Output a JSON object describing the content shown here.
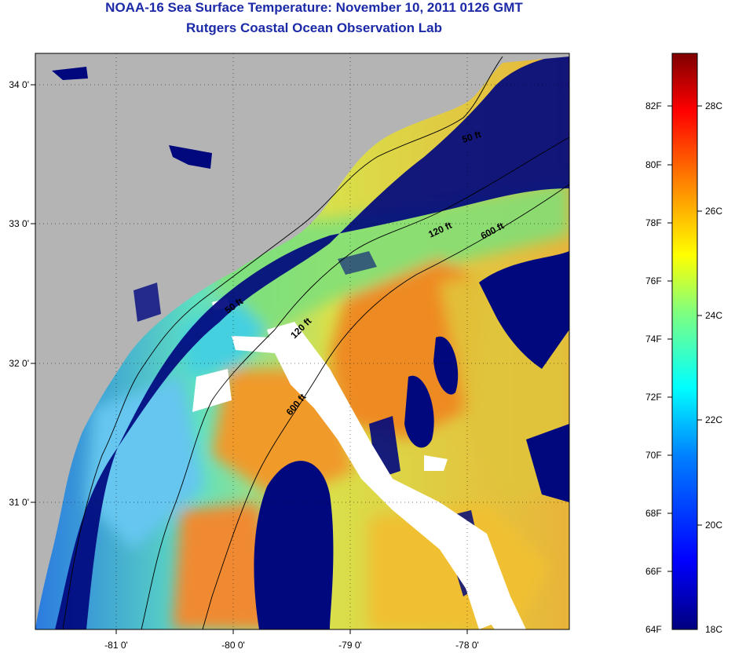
{
  "header": {
    "title": "NOAA-16 Sea Surface Temperature:  November 10, 2011 0126 GMT",
    "subtitle": "Rutgers Coastal Ocean Observation Lab"
  },
  "map": {
    "lat_ticks": [
      "34 0'",
      "33 0'",
      "32 0'",
      "31 0'"
    ],
    "lon_ticks": [
      "-81 0'",
      "-80 0'",
      "-79 0'",
      "-78 0'"
    ],
    "isobath_labels": [
      "50 ft",
      "120 ft",
      "600 ft",
      "50 ft",
      "120 ft",
      "600 ft"
    ],
    "colors": {
      "land": "#b4b4b4",
      "cold_water": "#00087e",
      "cloud": "#ffffff"
    }
  },
  "colorbar": {
    "fahrenheit_labels": [
      "82F",
      "80F",
      "78F",
      "76F",
      "74F",
      "72F",
      "70F",
      "68F",
      "66F",
      "64F"
    ],
    "celsius_labels": [
      "28C",
      "26C",
      "24C",
      "22C",
      "20C",
      "18C"
    ],
    "stops": [
      "#00007f",
      "#0000ff",
      "#007fff",
      "#00ffff",
      "#7fff7f",
      "#ffff00",
      "#ff7f00",
      "#ff0000",
      "#7f0000"
    ]
  }
}
